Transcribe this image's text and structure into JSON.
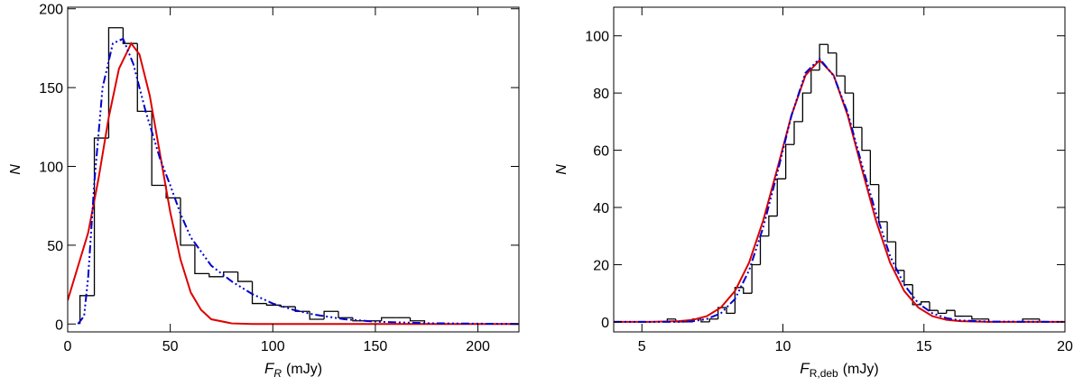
{
  "chart_data": [
    {
      "type": "histogram",
      "x_label_symbol": "F",
      "x_label_subscript": "R",
      "x_label_unit": "(mJy)",
      "y_label": "N",
      "bins": [
        6,
        13,
        20,
        27,
        34,
        41,
        48,
        55,
        62,
        69,
        76,
        83,
        90,
        97,
        104,
        111,
        118,
        125,
        132,
        139,
        146,
        153,
        160,
        167,
        174
      ],
      "counts": [
        18,
        118,
        188,
        178,
        135,
        88,
        80,
        50,
        32,
        30,
        33,
        27,
        13,
        12,
        11,
        8,
        3,
        8,
        4,
        2,
        2,
        4,
        4,
        2
      ],
      "color": "#000000",
      "series": [
        {
          "color": "#dd0000",
          "style": "solid",
          "x": [
            0,
            10,
            15,
            20,
            25,
            31,
            35,
            40,
            45,
            50,
            55,
            60,
            65,
            70,
            80,
            90,
            220
          ],
          "values": [
            15,
            58,
            92,
            131,
            162,
            178,
            171,
            145,
            108,
            71,
            41,
            20,
            9,
            3,
            0.4,
            0,
            0
          ]
        },
        {
          "color": "#0000cc",
          "style": "dash-dot-dot-dot",
          "x": [
            5,
            8,
            10,
            13,
            17,
            22,
            27,
            32,
            38,
            45,
            50,
            55,
            60,
            70,
            80,
            90,
            100,
            110,
            120,
            135,
            150,
            175,
            220
          ],
          "values": [
            0,
            5,
            30,
            90,
            150,
            178,
            181,
            165,
            135,
            105,
            88,
            70,
            55,
            37,
            27,
            19,
            13,
            9,
            6,
            3,
            1.5,
            0.5,
            0
          ]
        }
      ],
      "xlim": [
        0,
        220
      ],
      "xticks": [
        0,
        50,
        100,
        150,
        200
      ],
      "ylim": [
        -5,
        201
      ],
      "yticks": [
        0,
        50,
        100,
        150,
        200
      ]
    },
    {
      "type": "histogram",
      "x_label_symbol": "F",
      "x_label_subscript": "R,deb",
      "x_label_unit": "(mJy)",
      "y_label": "N",
      "bins": [
        5.9,
        6.2,
        6.5,
        6.8,
        7.1,
        7.4,
        7.7,
        8.0,
        8.3,
        8.6,
        8.9,
        9.2,
        9.5,
        9.8,
        10.1,
        10.4,
        10.7,
        11.0,
        11.3,
        11.6,
        11.9,
        12.2,
        12.5,
        12.8,
        13.1,
        13.4,
        13.7,
        14.0,
        14.3,
        14.6,
        14.9,
        15.2,
        15.5,
        15.8,
        16.1,
        16.4,
        16.7,
        17.0,
        17.3,
        17.6,
        17.9,
        18.2,
        18.5,
        18.8,
        19.1,
        19.4
      ],
      "counts": [
        1,
        0,
        0,
        1,
        0,
        1,
        5,
        3,
        12,
        10,
        20,
        30,
        37,
        50,
        62,
        70,
        80,
        88,
        97,
        94,
        86,
        80,
        68,
        60,
        48,
        35,
        28,
        18,
        13,
        6,
        7,
        4,
        3,
        4,
        2,
        2,
        1,
        1,
        0,
        0,
        0,
        0,
        1,
        1,
        0
      ],
      "color": "#000000",
      "series": [
        {
          "color": "#dd0000",
          "style": "solid",
          "x": [
            4,
            5.3,
            6.3,
            6.8,
            7.3,
            7.8,
            8.3,
            8.8,
            9.3,
            9.8,
            10.3,
            10.8,
            11.3,
            11.8,
            12.3,
            12.8,
            13.3,
            13.8,
            14.3,
            14.8,
            15.3,
            15.8,
            16.3,
            17.3,
            20
          ],
          "values": [
            0,
            0,
            0.24,
            0.7,
            2,
            5,
            10.8,
            20.7,
            35.4,
            53.5,
            72.1,
            86.2,
            91.5,
            86.2,
            72.1,
            53.5,
            35.4,
            20.7,
            10.8,
            5,
            2,
            0.7,
            0.24,
            0,
            0
          ]
        },
        {
          "color": "#0000cc",
          "style": "dash-dot-dot-dot",
          "x": [
            4,
            5.3,
            6.3,
            6.8,
            7.3,
            7.8,
            8.3,
            8.8,
            9.3,
            9.8,
            10.3,
            10.8,
            11.3,
            11.8,
            12.3,
            12.8,
            13.3,
            13.8,
            14.3,
            14.8,
            15.3,
            15.8,
            16.3,
            17.3,
            20
          ],
          "values": [
            0,
            0,
            0,
            0.2,
            1,
            3,
            8,
            18,
            33,
            52,
            72,
            87,
            92,
            86,
            73,
            55,
            38,
            23,
            13,
            6.5,
            3,
            1.3,
            0.5,
            0.1,
            0
          ]
        }
      ],
      "xlim": [
        4,
        20
      ],
      "xticks": [
        5,
        10,
        15,
        20
      ],
      "ylim": [
        -3.5,
        110
      ],
      "yticks": [
        0,
        20,
        40,
        60,
        80,
        100
      ]
    }
  ]
}
